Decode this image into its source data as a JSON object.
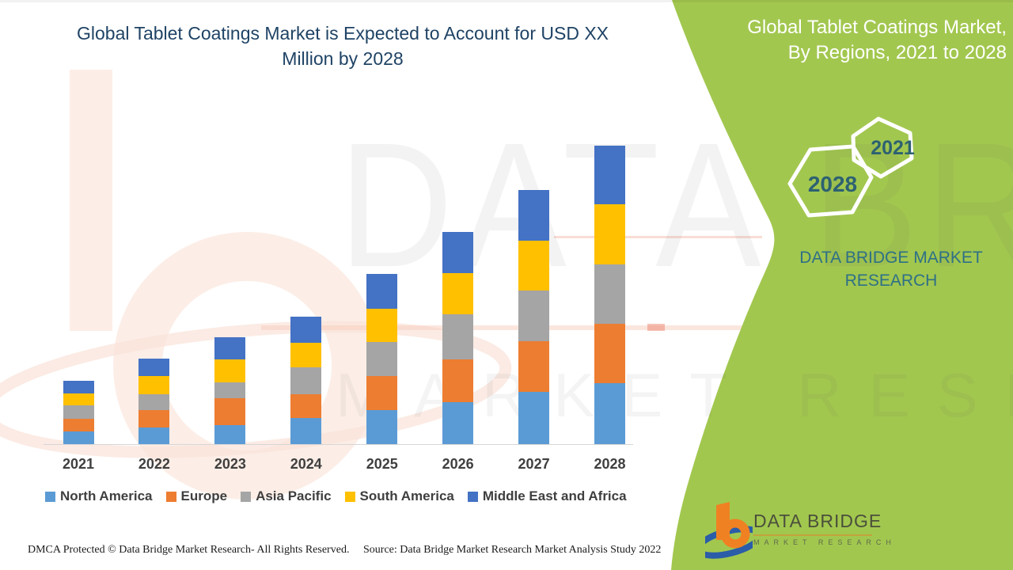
{
  "left_panel": {
    "title": "Global Tablet Coatings Market is Expected to Account for USD XX Million by 2028"
  },
  "right_panel": {
    "title": "Global Tablet Coatings Market, By Regions, 2021 to 2028",
    "bg_color": "#A2C74F",
    "hexagons": [
      {
        "label": "2028"
      },
      {
        "label": "2021"
      }
    ],
    "brand_text": "DATA BRIDGE MARKET RESEARCH",
    "brand_text_color": "#2E7086"
  },
  "chart_data": {
    "type": "bar",
    "stacked": true,
    "title": "Global Tablet Coatings Market is Expected to Account for USD XX Million by 2028",
    "xlabel": "",
    "ylabel": "",
    "y_axis_visible": false,
    "grid": false,
    "legend_position": "bottom",
    "value_note": "y-axis unlabeled (USD XX Million); values are relative heights estimated from pixels",
    "categories": [
      "2021",
      "2022",
      "2023",
      "2024",
      "2025",
      "2026",
      "2027",
      "2028"
    ],
    "series": [
      {
        "name": "North America",
        "color": "#5B9BD5",
        "values": [
          16,
          21,
          24,
          33,
          43,
          53,
          66,
          77
        ]
      },
      {
        "name": "Europe",
        "color": "#ED7D31",
        "values": [
          16,
          22,
          34,
          30,
          43,
          54,
          64,
          75
        ]
      },
      {
        "name": "Asia Pacific",
        "color": "#A5A5A5",
        "values": [
          17,
          20,
          20,
          34,
          43,
          57,
          64,
          75
        ]
      },
      {
        "name": "South America",
        "color": "#FFC000",
        "values": [
          15,
          23,
          29,
          31,
          42,
          52,
          63,
          76
        ]
      },
      {
        "name": "Middle East and Africa",
        "color": "#4472C4",
        "values": [
          16,
          22,
          28,
          33,
          44,
          52,
          64,
          74
        ]
      }
    ]
  },
  "watermark": {
    "row1": "DATA BRIDGE",
    "row2": "MARKET RESEARCH"
  },
  "logo": {
    "line1": "DATA BRIDGE",
    "line2": "MARKET RESEARCH"
  },
  "footer": {
    "left": "DMCA Protected © Data Bridge Market Research- All Rights Reserved.",
    "right": "Source: Data Bridge Market Research Market Analysis Study 2022"
  }
}
